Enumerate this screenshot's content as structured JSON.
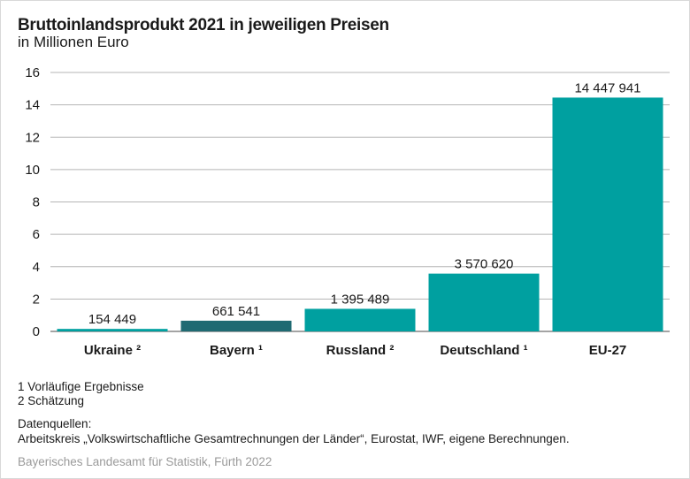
{
  "chart_data": {
    "type": "bar",
    "title": "Bruttoinlandsprodukt 2021 in jeweiligen Preisen",
    "subtitle": "in Millionen Euro",
    "categories": [
      "Ukraine ²",
      "Bayern ¹",
      "Russland ²",
      "Deutschland ¹",
      "EU-27"
    ],
    "values": [
      0.154449,
      0.661541,
      1.395489,
      3.57062,
      14.447941
    ],
    "value_labels": [
      "154 449",
      "661 541",
      "1 395 489",
      "3 570 620",
      "14 447 941"
    ],
    "bar_colors": [
      "#00a0a0",
      "#1f6a72",
      "#00a0a0",
      "#00a0a0",
      "#00a0a0"
    ],
    "ylim": [
      0,
      16
    ],
    "yticks": [
      0,
      2,
      4,
      6,
      8,
      10,
      12,
      14,
      16
    ],
    "grid": true,
    "xlabel": "",
    "ylabel": ""
  },
  "footnotes": [
    "1 Vorläufige Ergebnisse",
    "2 Schätzung"
  ],
  "sources_heading": "Datenquellen:",
  "sources_text": "Arbeitskreis „Volkswirtschaftliche Gesamtrechnungen der Länder“, Eurostat, IWF, eigene Berechnungen.",
  "credit": "Bayerisches Landesamt für Statistik, Fürth 2022"
}
